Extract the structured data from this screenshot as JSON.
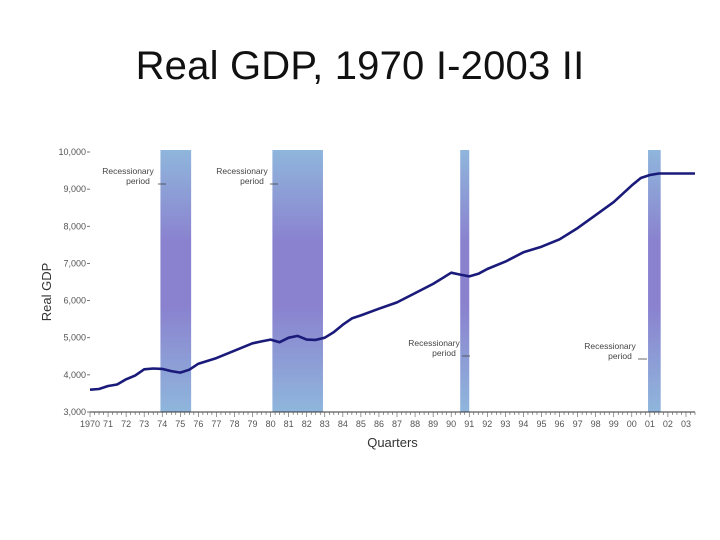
{
  "title": "Real GDP, 1970 I-2003 II",
  "chart_data": {
    "type": "line",
    "xlabel": "Quarters",
    "ylabel": "Real GDP",
    "ylim": [
      3000,
      10000
    ],
    "xlim": [
      1970,
      2003.5
    ],
    "yticks": [
      3000,
      4000,
      5000,
      6000,
      7000,
      8000,
      9000,
      10000
    ],
    "ytick_labels": [
      "3,000",
      "4,000",
      "5,000",
      "6,000",
      "7,000",
      "8,000",
      "9,000",
      "10,000"
    ],
    "xtick_labels": [
      "1970",
      "71",
      "72",
      "73",
      "74",
      "75",
      "76",
      "77",
      "78",
      "79",
      "80",
      "81",
      "82",
      "83",
      "84",
      "85",
      "86",
      "87",
      "88",
      "89",
      "90",
      "91",
      "92",
      "93",
      "94",
      "95",
      "96",
      "97",
      "98",
      "99",
      "00",
      "01",
      "02",
      "03"
    ],
    "grid": false,
    "line_color": "#1a1a7a",
    "recession_color_top": "#8fb6dc",
    "recession_color_mid": "#8a82cf",
    "recessions": [
      {
        "start": 1973.9,
        "end": 1975.6,
        "label_lines": [
          "Recessionary",
          "period"
        ]
      },
      {
        "start": 1980.1,
        "end": 1982.9,
        "label_lines": [
          "Recessionary",
          "period"
        ]
      },
      {
        "start": 1990.5,
        "end": 1991.0,
        "label_lines": [
          "Recessionary",
          "period"
        ]
      },
      {
        "start": 2000.9,
        "end": 2001.6,
        "label_lines": [
          "Recessionary",
          "period"
        ]
      }
    ],
    "series": [
      {
        "x": [
          1970,
          1970.5,
          1971,
          1971.5,
          1972,
          1972.5,
          1973,
          1973.5,
          1974,
          1974.5,
          1975,
          1975.5,
          1976,
          1977,
          1978,
          1979,
          1979.5,
          1980,
          1980.5,
          1981,
          1981.5,
          1982,
          1982.5,
          1983,
          1983.5,
          1984,
          1984.5,
          1985,
          1986,
          1987,
          1988,
          1989,
          1989.5,
          1990,
          1990.5,
          1991,
          1991.5,
          1992,
          1993,
          1994,
          1995,
          1996,
          1997,
          1998,
          1999,
          2000,
          2000.5,
          2001,
          2001.5,
          2002,
          2002.5,
          2003,
          2003.5
        ],
        "y": [
          3600,
          3620,
          3700,
          3740,
          3880,
          3980,
          4150,
          4170,
          4160,
          4100,
          4060,
          4140,
          4300,
          4450,
          4650,
          4850,
          4900,
          4950,
          4880,
          5000,
          5050,
          4950,
          4940,
          5000,
          5150,
          5350,
          5520,
          5600,
          5780,
          5950,
          6200,
          6450,
          6600,
          6750,
          6700,
          6650,
          6720,
          6850,
          7050,
          7300,
          7450,
          7650,
          7950,
          8300,
          8650,
          9100,
          9300,
          9380,
          9420,
          9420,
          9420,
          9420,
          9420
        ]
      }
    ]
  }
}
